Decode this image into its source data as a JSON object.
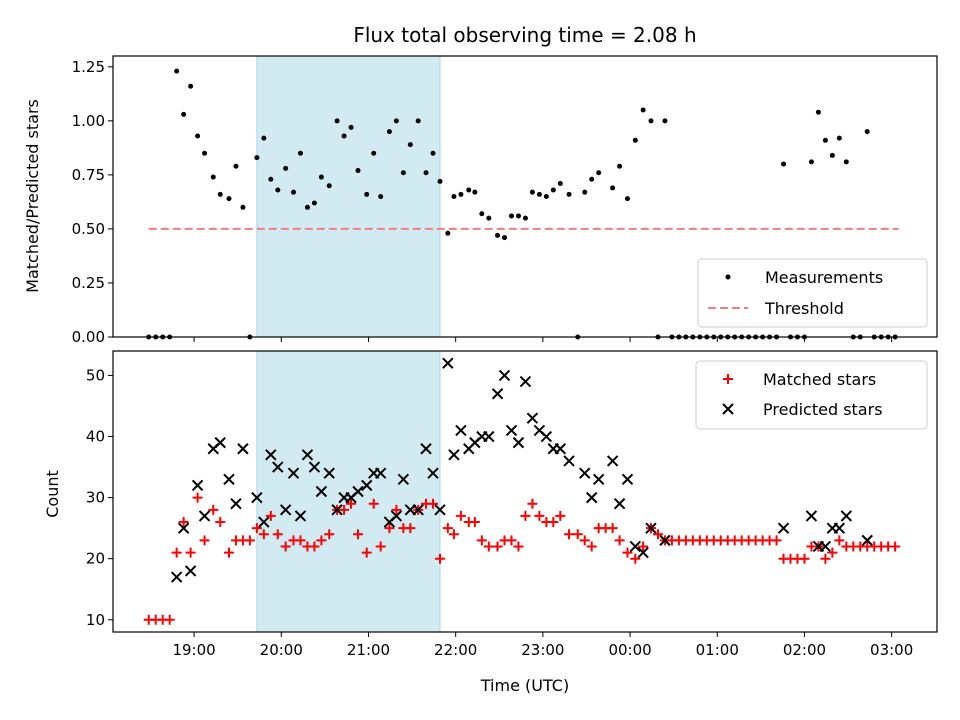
{
  "chart_data": {
    "title": "Flux total observing time = 2.08 h",
    "xlabel": "Time (UTC)",
    "x_unit": "hours since 00:00 UTC (day 1 evening)",
    "xlim": [
      18.07,
      27.52
    ],
    "x_ticks": [
      {
        "h": 19,
        "label": "19:00"
      },
      {
        "h": 20,
        "label": "20:00"
      },
      {
        "h": 21,
        "label": "21:00"
      },
      {
        "h": 22,
        "label": "22:00"
      },
      {
        "h": 23,
        "label": "23:00"
      },
      {
        "h": 24,
        "label": "00:00"
      },
      {
        "h": 25,
        "label": "01:00"
      },
      {
        "h": 26,
        "label": "02:00"
      },
      {
        "h": 27,
        "label": "03:00"
      }
    ],
    "shaded_span": {
      "start": 19.72,
      "end": 21.82,
      "color": "#add8e6"
    },
    "top": {
      "type": "scatter",
      "ylabel": "Matched/Predicted stars",
      "ylim": [
        0,
        1.3
      ],
      "y_ticks": [
        {
          "v": 0,
          "label": "0.00"
        },
        {
          "v": 0.25,
          "label": "0.25"
        },
        {
          "v": 0.5,
          "label": "0.50"
        },
        {
          "v": 0.75,
          "label": "0.75"
        },
        {
          "v": 1.0,
          "label": "1.00"
        },
        {
          "v": 1.25,
          "label": "1.25"
        }
      ],
      "threshold": {
        "value": 0.5,
        "x_start": 18.48,
        "x_end": 27.08,
        "color": "#f08080"
      },
      "legend": {
        "position": "lower-right",
        "items": [
          {
            "label": "Measurements",
            "marker": "dot",
            "color": "#000000"
          },
          {
            "label": "Threshold",
            "marker": "dashed-line",
            "color": "#f08080"
          }
        ]
      },
      "measurements": [
        [
          18.48,
          0.0
        ],
        [
          18.56,
          0.0
        ],
        [
          18.64,
          0.0
        ],
        [
          18.72,
          0.0
        ],
        [
          18.8,
          1.23
        ],
        [
          18.88,
          1.03
        ],
        [
          18.96,
          1.16
        ],
        [
          19.04,
          0.93
        ],
        [
          19.12,
          0.85
        ],
        [
          19.22,
          0.74
        ],
        [
          19.3,
          0.66
        ],
        [
          19.4,
          0.64
        ],
        [
          19.48,
          0.79
        ],
        [
          19.56,
          0.6
        ],
        [
          19.64,
          0.0
        ],
        [
          19.72,
          0.83
        ],
        [
          19.8,
          0.92
        ],
        [
          19.88,
          0.73
        ],
        [
          19.96,
          0.68
        ],
        [
          20.05,
          0.78
        ],
        [
          20.14,
          0.67
        ],
        [
          20.22,
          0.85
        ],
        [
          20.3,
          0.6
        ],
        [
          20.38,
          0.62
        ],
        [
          20.46,
          0.74
        ],
        [
          20.55,
          0.7
        ],
        [
          20.64,
          1.0
        ],
        [
          20.72,
          0.93
        ],
        [
          20.8,
          0.97
        ],
        [
          20.88,
          0.77
        ],
        [
          20.98,
          0.66
        ],
        [
          21.06,
          0.85
        ],
        [
          21.14,
          0.65
        ],
        [
          21.24,
          0.95
        ],
        [
          21.32,
          1.0
        ],
        [
          21.4,
          0.76
        ],
        [
          21.48,
          0.89
        ],
        [
          21.57,
          1.0
        ],
        [
          21.66,
          0.76
        ],
        [
          21.74,
          0.85
        ],
        [
          21.82,
          0.72
        ],
        [
          21.91,
          0.48
        ],
        [
          21.98,
          0.65
        ],
        [
          22.06,
          0.66
        ],
        [
          22.15,
          0.68
        ],
        [
          22.22,
          0.67
        ],
        [
          22.3,
          0.57
        ],
        [
          22.38,
          0.55
        ],
        [
          22.48,
          0.47
        ],
        [
          22.56,
          0.46
        ],
        [
          22.64,
          0.56
        ],
        [
          22.72,
          0.56
        ],
        [
          22.8,
          0.55
        ],
        [
          22.88,
          0.67
        ],
        [
          22.96,
          0.66
        ],
        [
          23.04,
          0.65
        ],
        [
          23.12,
          0.68
        ],
        [
          23.2,
          0.71
        ],
        [
          23.3,
          0.66
        ],
        [
          23.4,
          0.0
        ],
        [
          23.48,
          0.67
        ],
        [
          23.56,
          0.73
        ],
        [
          23.64,
          0.76
        ],
        [
          23.8,
          0.69
        ],
        [
          23.88,
          0.79
        ],
        [
          23.97,
          0.64
        ],
        [
          24.06,
          0.91
        ],
        [
          24.15,
          1.05
        ],
        [
          24.24,
          1.0
        ],
        [
          24.4,
          1.0
        ],
        [
          24.32,
          0.0
        ],
        [
          24.48,
          0.0
        ],
        [
          24.56,
          0.0
        ],
        [
          24.64,
          0.0
        ],
        [
          24.72,
          0.0
        ],
        [
          24.8,
          0.0
        ],
        [
          24.88,
          0.0
        ],
        [
          24.96,
          0.0
        ],
        [
          25.04,
          0.0
        ],
        [
          25.12,
          0.0
        ],
        [
          25.2,
          0.0
        ],
        [
          25.28,
          0.0
        ],
        [
          25.36,
          0.0
        ],
        [
          25.44,
          0.0
        ],
        [
          25.52,
          0.0
        ],
        [
          25.6,
          0.0
        ],
        [
          25.68,
          0.0
        ],
        [
          25.76,
          0.8
        ],
        [
          25.84,
          0.0
        ],
        [
          25.92,
          0.0
        ],
        [
          26.0,
          0.0
        ],
        [
          26.08,
          0.81
        ],
        [
          26.16,
          1.04
        ],
        [
          26.24,
          0.91
        ],
        [
          26.32,
          0.84
        ],
        [
          26.4,
          0.92
        ],
        [
          26.48,
          0.81
        ],
        [
          26.56,
          0.0
        ],
        [
          26.64,
          0.0
        ],
        [
          26.72,
          0.95
        ],
        [
          26.8,
          0.0
        ],
        [
          26.88,
          0.0
        ],
        [
          26.96,
          0.0
        ],
        [
          27.04,
          0.0
        ]
      ]
    },
    "bottom": {
      "type": "scatter",
      "ylabel": "Count",
      "ylim": [
        8,
        54
      ],
      "y_ticks": [
        {
          "v": 10,
          "label": "10"
        },
        {
          "v": 20,
          "label": "20"
        },
        {
          "v": 30,
          "label": "30"
        },
        {
          "v": 40,
          "label": "40"
        },
        {
          "v": 50,
          "label": "50"
        }
      ],
      "legend": {
        "position": "upper-right",
        "items": [
          {
            "label": "Matched stars",
            "marker": "plus",
            "color": "#ff0000"
          },
          {
            "label": "Predicted stars",
            "marker": "x",
            "color": "#000000"
          }
        ]
      },
      "matched": [
        [
          18.48,
          10
        ],
        [
          18.56,
          10
        ],
        [
          18.64,
          10
        ],
        [
          18.72,
          10
        ],
        [
          18.8,
          21
        ],
        [
          18.88,
          26
        ],
        [
          18.96,
          21
        ],
        [
          19.04,
          30
        ],
        [
          19.12,
          23
        ],
        [
          19.22,
          28
        ],
        [
          19.3,
          26
        ],
        [
          19.4,
          21
        ],
        [
          19.48,
          23
        ],
        [
          19.56,
          23
        ],
        [
          19.64,
          23
        ],
        [
          19.72,
          25
        ],
        [
          19.8,
          24
        ],
        [
          19.88,
          27
        ],
        [
          19.96,
          24
        ],
        [
          20.05,
          22
        ],
        [
          20.14,
          23
        ],
        [
          20.22,
          23
        ],
        [
          20.3,
          22
        ],
        [
          20.38,
          22
        ],
        [
          20.46,
          23
        ],
        [
          20.55,
          24
        ],
        [
          20.64,
          28
        ],
        [
          20.72,
          28
        ],
        [
          20.8,
          29
        ],
        [
          20.88,
          24
        ],
        [
          20.98,
          21
        ],
        [
          21.06,
          29
        ],
        [
          21.14,
          22
        ],
        [
          21.24,
          25
        ],
        [
          21.32,
          28
        ],
        [
          21.4,
          25
        ],
        [
          21.48,
          25
        ],
        [
          21.57,
          28
        ],
        [
          21.66,
          29
        ],
        [
          21.74,
          29
        ],
        [
          21.82,
          20
        ],
        [
          21.91,
          25
        ],
        [
          21.98,
          24
        ],
        [
          22.06,
          27
        ],
        [
          22.15,
          26
        ],
        [
          22.22,
          26
        ],
        [
          22.3,
          23
        ],
        [
          22.38,
          22
        ],
        [
          22.48,
          22
        ],
        [
          22.56,
          23
        ],
        [
          22.64,
          23
        ],
        [
          22.72,
          22
        ],
        [
          22.8,
          27
        ],
        [
          22.88,
          29
        ],
        [
          22.96,
          27
        ],
        [
          23.04,
          26
        ],
        [
          23.12,
          26
        ],
        [
          23.2,
          27
        ],
        [
          23.3,
          24
        ],
        [
          23.4,
          24
        ],
        [
          23.48,
          23
        ],
        [
          23.56,
          22
        ],
        [
          23.64,
          25
        ],
        [
          23.72,
          25
        ],
        [
          23.8,
          25
        ],
        [
          23.88,
          23
        ],
        [
          23.97,
          21
        ],
        [
          24.06,
          20
        ],
        [
          24.15,
          22
        ],
        [
          24.24,
          25
        ],
        [
          24.32,
          24
        ],
        [
          24.4,
          23
        ],
        [
          24.48,
          23
        ],
        [
          24.56,
          23
        ],
        [
          24.64,
          23
        ],
        [
          24.72,
          23
        ],
        [
          24.8,
          23
        ],
        [
          24.88,
          23
        ],
        [
          24.96,
          23
        ],
        [
          25.04,
          23
        ],
        [
          25.12,
          23
        ],
        [
          25.2,
          23
        ],
        [
          25.28,
          23
        ],
        [
          25.36,
          23
        ],
        [
          25.44,
          23
        ],
        [
          25.52,
          23
        ],
        [
          25.6,
          23
        ],
        [
          25.68,
          23
        ],
        [
          25.76,
          20
        ],
        [
          25.84,
          20
        ],
        [
          25.92,
          20
        ],
        [
          26.0,
          20
        ],
        [
          26.08,
          22
        ],
        [
          26.16,
          22
        ],
        [
          26.24,
          20
        ],
        [
          26.32,
          21
        ],
        [
          26.4,
          23
        ],
        [
          26.48,
          22
        ],
        [
          26.56,
          22
        ],
        [
          26.64,
          22
        ],
        [
          26.72,
          22
        ],
        [
          26.8,
          22
        ],
        [
          26.88,
          22
        ],
        [
          26.96,
          22
        ],
        [
          27.04,
          22
        ]
      ],
      "predicted": [
        [
          18.8,
          17
        ],
        [
          18.88,
          25
        ],
        [
          18.96,
          18
        ],
        [
          19.04,
          32
        ],
        [
          19.12,
          27
        ],
        [
          19.22,
          38
        ],
        [
          19.3,
          39
        ],
        [
          19.4,
          33
        ],
        [
          19.48,
          29
        ],
        [
          19.56,
          38
        ],
        [
          19.72,
          30
        ],
        [
          19.8,
          26
        ],
        [
          19.88,
          37
        ],
        [
          19.96,
          35
        ],
        [
          20.05,
          28
        ],
        [
          20.14,
          34
        ],
        [
          20.22,
          27
        ],
        [
          20.3,
          37
        ],
        [
          20.38,
          35
        ],
        [
          20.46,
          31
        ],
        [
          20.55,
          34
        ],
        [
          20.64,
          28
        ],
        [
          20.72,
          30
        ],
        [
          20.8,
          30
        ],
        [
          20.88,
          31
        ],
        [
          20.98,
          32
        ],
        [
          21.06,
          34
        ],
        [
          21.14,
          34
        ],
        [
          21.24,
          26
        ],
        [
          21.32,
          27
        ],
        [
          21.4,
          33
        ],
        [
          21.48,
          28
        ],
        [
          21.57,
          28
        ],
        [
          21.66,
          38
        ],
        [
          21.74,
          34
        ],
        [
          21.82,
          28
        ],
        [
          21.91,
          52
        ],
        [
          21.98,
          37
        ],
        [
          22.06,
          41
        ],
        [
          22.15,
          38
        ],
        [
          22.22,
          39
        ],
        [
          22.3,
          40
        ],
        [
          22.38,
          40
        ],
        [
          22.48,
          47
        ],
        [
          22.56,
          50
        ],
        [
          22.64,
          41
        ],
        [
          22.72,
          39
        ],
        [
          22.8,
          49
        ],
        [
          22.88,
          43
        ],
        [
          22.96,
          41
        ],
        [
          23.04,
          40
        ],
        [
          23.12,
          38
        ],
        [
          23.2,
          38
        ],
        [
          23.3,
          36
        ],
        [
          23.48,
          34
        ],
        [
          23.56,
          30
        ],
        [
          23.64,
          33
        ],
        [
          23.8,
          36
        ],
        [
          23.88,
          29
        ],
        [
          23.97,
          33
        ],
        [
          24.06,
          22
        ],
        [
          24.15,
          21
        ],
        [
          24.24,
          25
        ],
        [
          24.4,
          23
        ],
        [
          25.76,
          25
        ],
        [
          26.08,
          27
        ],
        [
          26.16,
          22
        ],
        [
          26.24,
          22
        ],
        [
          26.32,
          25
        ],
        [
          26.4,
          25
        ],
        [
          26.48,
          27
        ],
        [
          26.72,
          23
        ]
      ]
    }
  }
}
